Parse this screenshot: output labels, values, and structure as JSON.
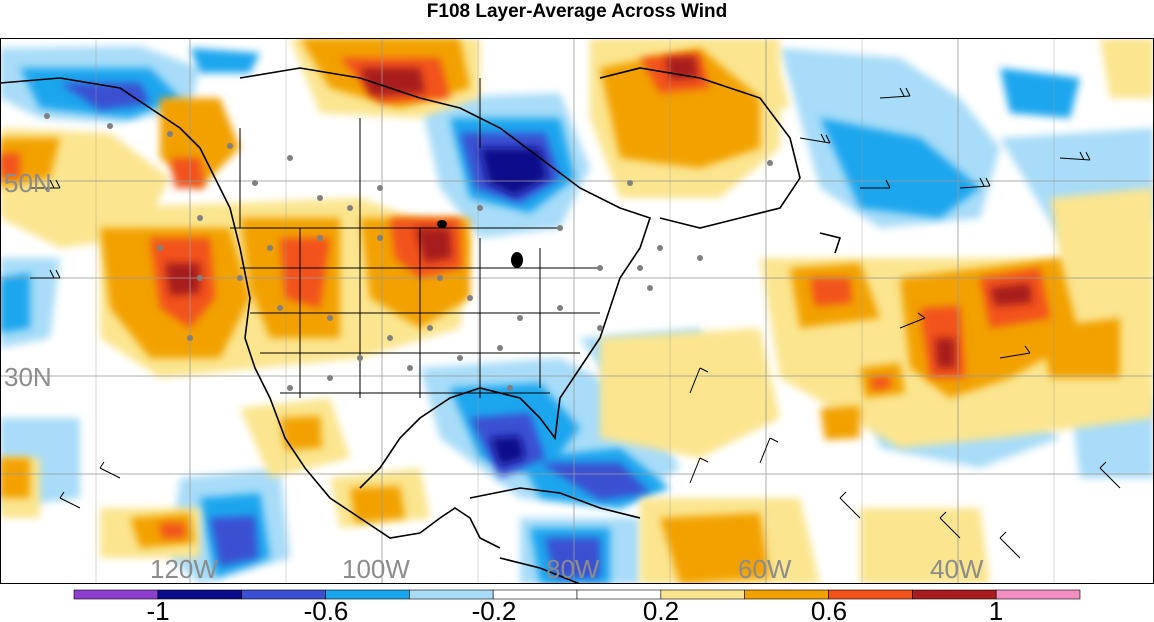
{
  "title": "F108 Layer-Average Across Wind",
  "map": {
    "lat_labels": [
      "50N",
      "30N"
    ],
    "lon_labels": [
      "120W",
      "100W",
      "80W",
      "60W",
      "40W"
    ],
    "palette": {
      "purple": "#8f3fcf",
      "navy": "#0a0a8c",
      "blue": "#3a4fd1",
      "mid_blue": "#1aa6ee",
      "light_blue": "#a8dcf8",
      "white": "#ffffff",
      "light_yellow": "#fbe58f",
      "orange": "#f2a100",
      "red_orange": "#f2521a",
      "dark_red": "#a71d1d",
      "pink": "#f28ec2"
    }
  },
  "colorbar": {
    "colors": [
      "#8f3fcf",
      "#0a0a8c",
      "#3a4fd1",
      "#1aa6ee",
      "#a8dcf8",
      "#ffffff",
      "#ffffff",
      "#fbe58f",
      "#f2a100",
      "#f2521a",
      "#a71d1d",
      "#f28ec2"
    ],
    "labels": [
      "-1",
      "-0.6",
      "-0.2",
      "0.2",
      "0.6",
      "1"
    ]
  }
}
